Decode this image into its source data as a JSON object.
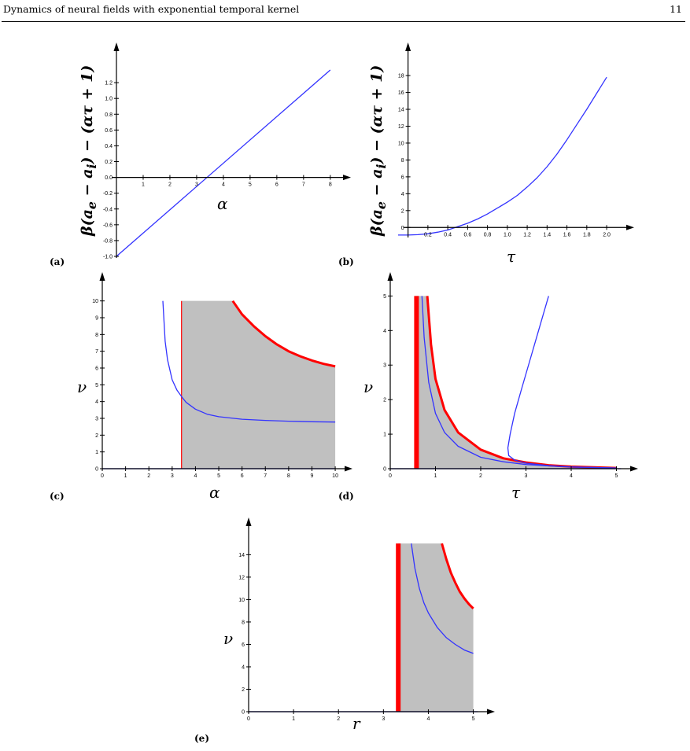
{
  "header": {
    "title": "Dynamics of neural fields with exponential temporal kernel",
    "page_number": "11"
  },
  "chart_data": [
    {
      "id": "a",
      "type": "line",
      "panel_label": "(a)",
      "xlabel": "α",
      "ylabel": "β(a_e − a_i) − (ατ + 1)",
      "xlim": [
        0,
        8.3
      ],
      "ylim": [
        -1.0,
        1.45
      ],
      "xticks": [
        1,
        2,
        3,
        4,
        5,
        6,
        7,
        8
      ],
      "yticks": [
        -1.0,
        -0.8,
        -0.6,
        -0.4,
        -0.2,
        0.0,
        0.2,
        0.4,
        0.6,
        0.8,
        1.0,
        1.2
      ],
      "ytick_decimals": 1,
      "series": [
        {
          "color": "#3333ff",
          "x": [
            0,
            8
          ],
          "y": [
            -1.0,
            1.36
          ]
        }
      ]
    },
    {
      "id": "b",
      "type": "line",
      "panel_label": "(b)",
      "xlabel": "τ",
      "ylabel": "β(a_e − a_i) − (ατ + 1)",
      "xlim": [
        -0.1,
        2.15
      ],
      "ylim": [
        -1.0,
        19.5
      ],
      "xticks": [
        0.2,
        0.4,
        0.6,
        0.8,
        1.0,
        1.2,
        1.4,
        1.6,
        1.8,
        2.0
      ],
      "yticks": [
        0,
        2,
        4,
        6,
        8,
        10,
        12,
        14,
        16,
        18
      ],
      "xtick_decimals": 1,
      "series": [
        {
          "color": "#3333ff",
          "x": [
            -0.1,
            0,
            0.1,
            0.2,
            0.3,
            0.4,
            0.5,
            0.6,
            0.7,
            0.8,
            0.9,
            1.0,
            1.1,
            1.2,
            1.3,
            1.4,
            1.5,
            1.6,
            1.7,
            1.8,
            1.9,
            2.0
          ],
          "y": [
            -0.9,
            -0.9,
            -0.85,
            -0.75,
            -0.55,
            -0.3,
            0.1,
            0.5,
            1.0,
            1.6,
            2.3,
            3.0,
            3.8,
            4.8,
            5.9,
            7.2,
            8.7,
            10.4,
            12.2,
            14.0,
            15.9,
            17.8
          ]
        }
      ]
    },
    {
      "id": "c",
      "type": "area",
      "panel_label": "(c)",
      "xlabel": "α",
      "ylabel": "ν",
      "xlim": [
        0,
        10.2
      ],
      "ylim": [
        0,
        10.5
      ],
      "xticks": [
        0,
        1,
        2,
        3,
        4,
        5,
        6,
        7,
        8,
        9,
        10
      ],
      "yticks": [
        0,
        1,
        2,
        3,
        4,
        5,
        6,
        7,
        8,
        9,
        10
      ],
      "region": {
        "color": "#c0c0c0",
        "x_left": 3.4,
        "x_right": 10,
        "top_max": 10,
        "upper_x": [
          5.6,
          6,
          6.5,
          7,
          7.5,
          8,
          8.5,
          9,
          9.5,
          10
        ],
        "upper_y": [
          10,
          9.2,
          8.5,
          7.9,
          7.4,
          7.0,
          6.7,
          6.45,
          6.25,
          6.1
        ]
      },
      "series": [
        {
          "color": "#ff0000",
          "kind": "vline",
          "x": [
            3.4,
            3.4
          ],
          "y": [
            0,
            10
          ]
        },
        {
          "color": "#ff0000",
          "kind": "curve",
          "x": [
            5.6,
            6,
            6.5,
            7,
            7.5,
            8,
            8.5,
            9,
            9.5,
            10
          ],
          "y": [
            10,
            9.2,
            8.5,
            7.9,
            7.4,
            7.0,
            6.7,
            6.45,
            6.25,
            6.1
          ]
        },
        {
          "color": "#3333ff",
          "kind": "curve",
          "x": [
            2.6,
            2.7,
            2.8,
            3.0,
            3.2,
            3.4,
            3.6,
            4.0,
            4.5,
            5,
            6,
            7,
            8,
            9,
            10
          ],
          "y": [
            10,
            7.6,
            6.5,
            5.3,
            4.7,
            4.3,
            3.95,
            3.55,
            3.25,
            3.1,
            2.95,
            2.88,
            2.83,
            2.8,
            2.78
          ]
        },
        {
          "color": "#3333ff",
          "kind": "curve",
          "x": [
            0,
            10
          ],
          "y": [
            0,
            0
          ]
        }
      ]
    },
    {
      "id": "d",
      "type": "area",
      "panel_label": "(d)",
      "xlabel": "τ",
      "ylabel": "ν",
      "xlim": [
        0,
        5.2
      ],
      "ylim": [
        0,
        5.1
      ],
      "xticks": [
        0,
        1,
        2,
        3,
        4,
        5
      ],
      "yticks": [
        0,
        1,
        2,
        3,
        4,
        5
      ],
      "region": {
        "color": "#c0c0c0",
        "x_left": 0.58,
        "x_right": 5,
        "top_max": 5,
        "upper_x": [
          0.82,
          0.9,
          1.0,
          1.2,
          1.5,
          2.0,
          2.5,
          3.0,
          3.5,
          4.0,
          5.0
        ],
        "upper_y": [
          5,
          3.6,
          2.6,
          1.7,
          1.05,
          0.55,
          0.3,
          0.18,
          0.1,
          0.06,
          0.02
        ]
      },
      "series": [
        {
          "color": "#ff0000",
          "kind": "vline",
          "x": [
            0.58,
            0.58
          ],
          "y": [
            0,
            5
          ]
        },
        {
          "color": "#ff0000",
          "kind": "curve",
          "x": [
            0.82,
            0.9,
            1.0,
            1.2,
            1.5,
            2.0,
            2.5,
            3.0,
            3.5,
            4.0,
            5.0
          ],
          "y": [
            5,
            3.6,
            2.6,
            1.7,
            1.05,
            0.55,
            0.3,
            0.18,
            0.1,
            0.06,
            0.02
          ]
        },
        {
          "color": "#3333ff",
          "kind": "curve",
          "x": [
            0.7,
            0.75,
            0.85,
            1.0,
            1.2,
            1.5,
            2.0,
            2.5,
            3.0,
            3.5,
            4.0,
            5.0
          ],
          "y": [
            5,
            3.8,
            2.5,
            1.6,
            1.05,
            0.65,
            0.33,
            0.2,
            0.12,
            0.08,
            0.05,
            0.02
          ]
        },
        {
          "color": "#3333ff",
          "kind": "curve",
          "x": [
            3.5,
            3.3,
            3.1,
            2.9,
            2.75,
            2.65,
            2.6,
            2.62,
            2.75,
            3.0,
            3.5,
            4.0,
            5.0
          ],
          "y": [
            5,
            4.1,
            3.2,
            2.3,
            1.6,
            1.0,
            0.6,
            0.38,
            0.25,
            0.16,
            0.09,
            0.05,
            0.02
          ]
        },
        {
          "color": "#3333ff",
          "kind": "curve",
          "x": [
            0,
            5.1
          ],
          "y": [
            0,
            0
          ]
        }
      ]
    },
    {
      "id": "e",
      "type": "area",
      "panel_label": "(e)",
      "xlabel": "r",
      "ylabel": "ν",
      "xlim": [
        0,
        5.2
      ],
      "ylim": [
        0,
        15.5
      ],
      "xticks": [
        0,
        1,
        2,
        3,
        4,
        5
      ],
      "yticks": [
        0,
        2,
        4,
        6,
        8,
        10,
        12,
        14
      ],
      "region": {
        "color": "#c0c0c0",
        "x_left": 3.33,
        "x_right": 5,
        "top_max": 15,
        "upper_x": [
          4.3,
          4.4,
          4.5,
          4.6,
          4.7,
          4.8,
          4.9,
          5.0
        ],
        "upper_y": [
          15,
          13.6,
          12.4,
          11.5,
          10.7,
          10.1,
          9.6,
          9.2
        ]
      },
      "series": [
        {
          "color": "#ff0000",
          "kind": "vline",
          "x": [
            3.33,
            3.33
          ],
          "y": [
            0,
            15
          ]
        },
        {
          "color": "#ff0000",
          "kind": "curve",
          "x": [
            4.3,
            4.4,
            4.5,
            4.6,
            4.7,
            4.8,
            4.9,
            5.0
          ],
          "y": [
            15,
            13.6,
            12.4,
            11.5,
            10.7,
            10.1,
            9.6,
            9.2
          ]
        },
        {
          "color": "#3333ff",
          "kind": "curve",
          "x": [
            3.62,
            3.7,
            3.8,
            3.9,
            4.0,
            4.2,
            4.4,
            4.6,
            4.8,
            5.0
          ],
          "y": [
            15,
            12.8,
            11.0,
            9.7,
            8.8,
            7.5,
            6.6,
            6.0,
            5.5,
            5.2
          ]
        },
        {
          "color": "#3333ff",
          "kind": "curve",
          "x": [
            0,
            5.1
          ],
          "y": [
            0,
            0
          ]
        }
      ]
    }
  ]
}
